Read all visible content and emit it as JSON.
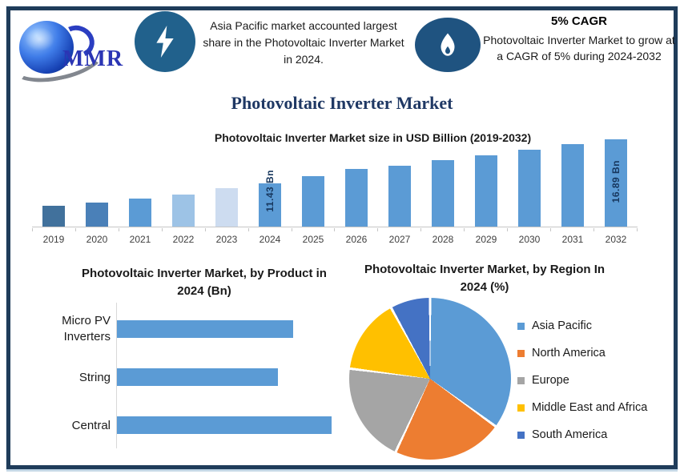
{
  "page": {
    "title": "Photovoltaic Inverter Market"
  },
  "colors": {
    "frame": "#1F3C5A",
    "title": "#1F3864",
    "badge1": "#21618C",
    "badge2": "#1F5380",
    "text": "#262626"
  },
  "header": {
    "logo": {
      "text": "MMR",
      "icon": "globe-icon"
    },
    "left_icon": "lightning-icon",
    "left_note": "Asia Pacific market accounted largest share in the Photovoltaic Inverter Market in 2024.",
    "right_icon": "flame-icon",
    "right_note": {
      "title": "5% CAGR",
      "text": "Photovoltaic Inverter Market to grow at a CAGR of 5% during 2024-2032"
    }
  },
  "chart_data": [
    {
      "id": "market-size",
      "type": "bar",
      "title": "Photovoltaic Inverter Market size in USD Billion (2019-2032)",
      "categories": [
        "2019",
        "2020",
        "2021",
        "2022",
        "2023",
        "2024",
        "2025",
        "2026",
        "2027",
        "2028",
        "2029",
        "2030",
        "2031",
        "2032"
      ],
      "values": [
        8.6,
        9.0,
        9.5,
        10.0,
        10.8,
        11.43,
        12.3,
        13.2,
        13.6,
        14.3,
        14.9,
        15.6,
        16.3,
        16.89
      ],
      "unit": "USD Billion",
      "ylim": [
        6,
        17
      ],
      "grid": false,
      "data_labels": {
        "2024": "11.43 Bn",
        "2032": "16.89 Bn"
      },
      "colors": [
        "#41719C",
        "#4A80B8",
        "#5B9BD5",
        "#9DC3E6",
        "#CDDCF0",
        "#5B9BD5",
        "#5B9BD5",
        "#5B9BD5",
        "#5B9BD5",
        "#5B9BD5",
        "#5B9BD5",
        "#5B9BD5",
        "#5B9BD5",
        "#5B9BD5"
      ]
    },
    {
      "id": "by-product",
      "type": "bar",
      "orientation": "horizontal",
      "title": "Photovoltaic Inverter Market, by Product in 2024 (Bn)",
      "categories": [
        "Micro PV Inverters",
        "String",
        "Central"
      ],
      "values": [
        4.1,
        3.75,
        5.0
      ],
      "xlim": [
        0,
        5.6
      ],
      "grid": false,
      "bar_color": "#5B9BD5"
    },
    {
      "id": "by-region",
      "type": "pie",
      "title": "Photovoltaic Inverter Market, by Region In 2024 (%)",
      "labels": [
        "Asia Pacific",
        "North America",
        "Europe",
        "Middle East and Africa",
        "South America"
      ],
      "values": [
        35,
        22,
        20,
        15,
        8
      ],
      "colors": [
        "#5B9BD5",
        "#ED7D31",
        "#A5A5A5",
        "#FFC000",
        "#4472C4"
      ],
      "start_angle": 0,
      "legend_position": "right"
    }
  ]
}
